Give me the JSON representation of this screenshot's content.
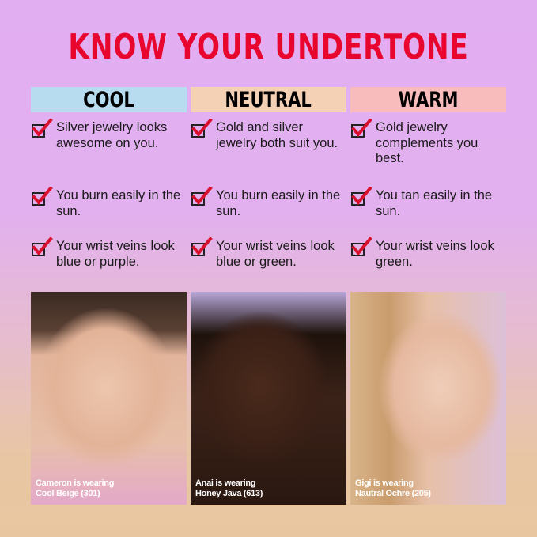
{
  "title": "KNOW YOUR UNDERTONE",
  "columns": [
    {
      "label": "COOL",
      "color": "#b7dcf0",
      "items": [
        "Silver jewelry looks awesome on you.",
        "You burn easily in the sun.",
        "Your wrist veins look blue or purple."
      ],
      "photo_caption": [
        "Cameron is wearing",
        "Cool Beige (301)"
      ]
    },
    {
      "label": "NEUTRAL",
      "color": "#f4d0b4",
      "items": [
        "Gold and silver jewelry both suit you.",
        "You burn easily in the sun.",
        "Your wrist veins look blue or green."
      ],
      "photo_caption": [
        "Anai is wearing",
        "Honey Java (613)"
      ]
    },
    {
      "label": "WARM",
      "color": "#f8bcbc",
      "items": [
        "Gold jewelry complements you best.",
        "You tan easily in the sun.",
        "Your wrist veins look green."
      ],
      "photo_caption": [
        "Gigi is wearing",
        "Nautral Ochre (205)"
      ]
    }
  ],
  "icons": {
    "check": "checkbox-checked-icon"
  },
  "colors": {
    "title": "#e8062e",
    "check": "#d8102e"
  }
}
